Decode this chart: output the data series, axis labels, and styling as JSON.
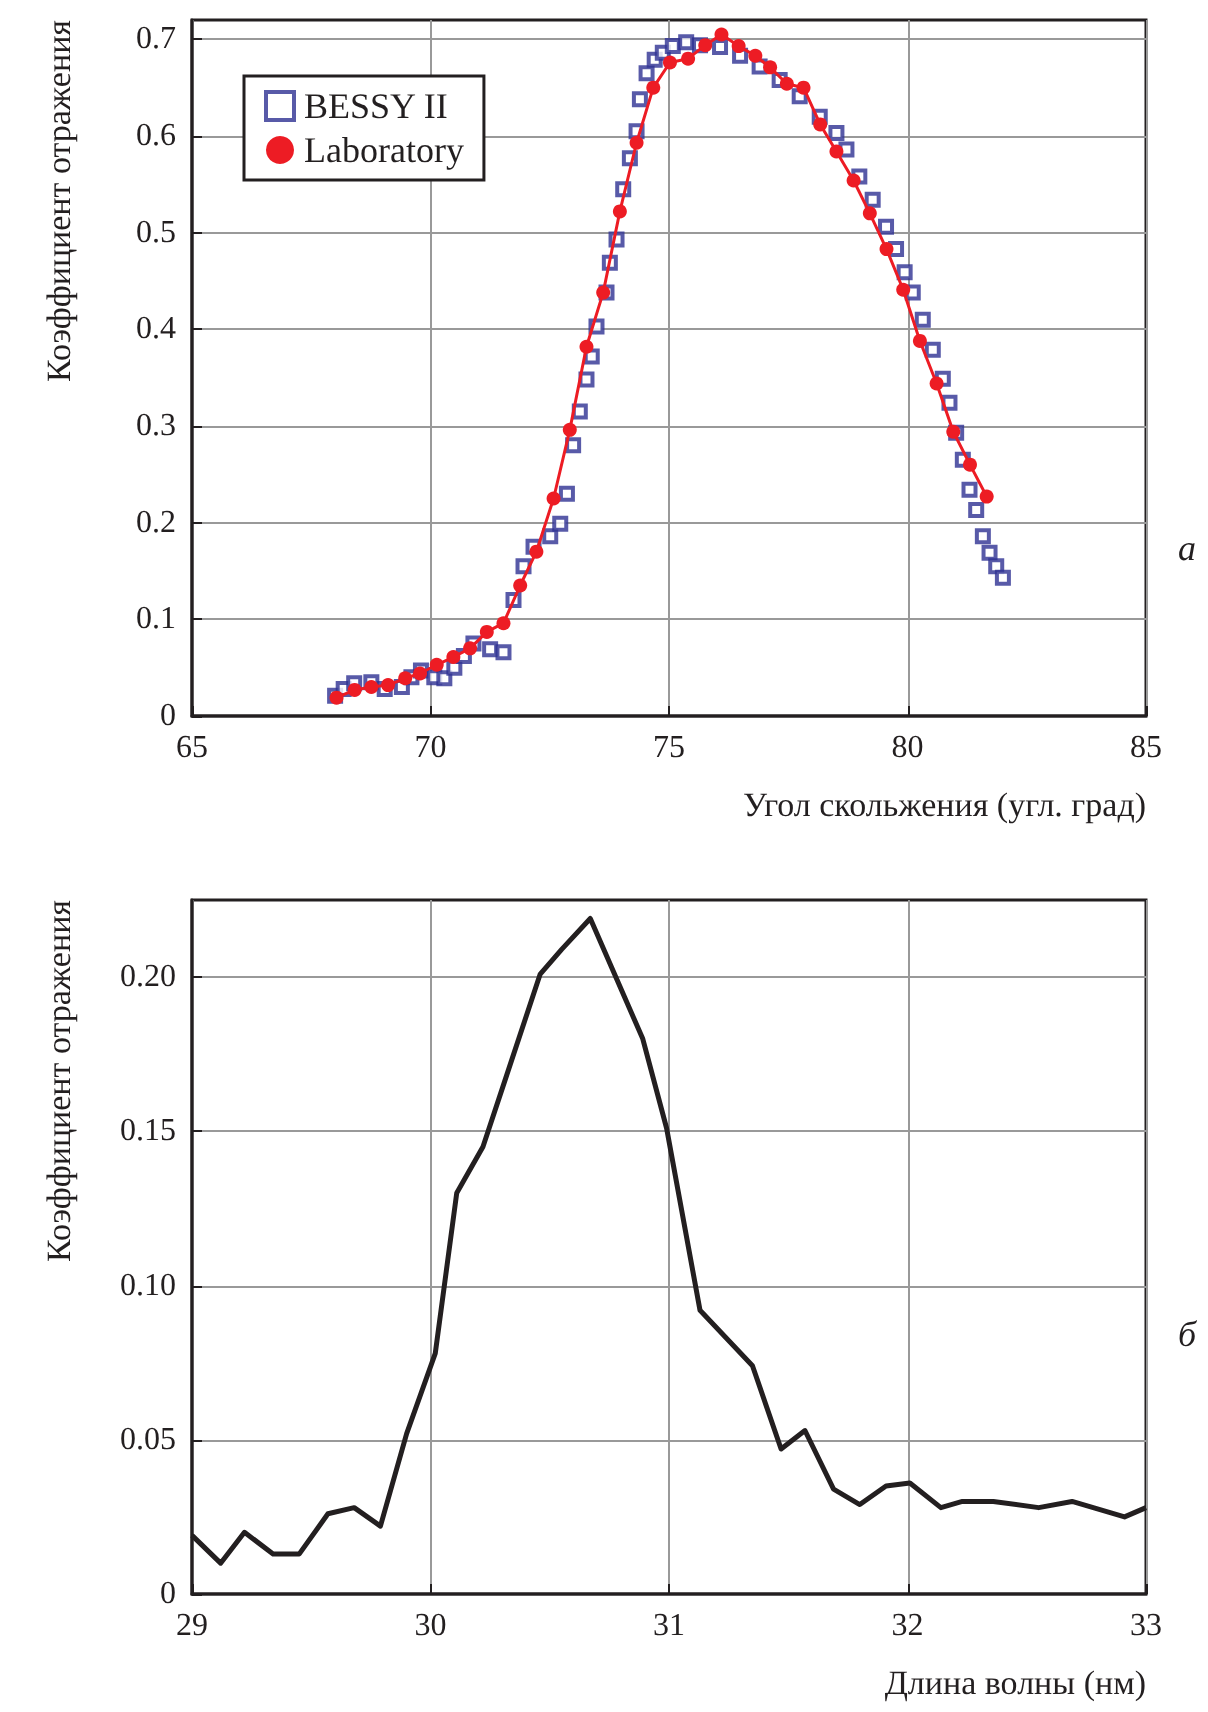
{
  "chart_data": [
    {
      "type": "scatter",
      "xlabel": "Угол скольжения (угл. град)",
      "ylabel": "Коэффициент отражения",
      "annotations": [
        "а"
      ],
      "xlim": [
        65,
        85
      ],
      "xticks": [
        65,
        70,
        75,
        80,
        85
      ],
      "ylim": [
        0,
        0.72
      ],
      "yticks": [
        0,
        0.1,
        0.2,
        0.3,
        0.4,
        0.5,
        0.6,
        0.7
      ],
      "grid": true,
      "legend": "top left",
      "series": [
        {
          "name": "BESSY II",
          "marker": "square",
          "color": "#2e3192",
          "x": [
            68.0,
            68.18,
            68.4,
            68.76,
            69.04,
            69.4,
            69.6,
            69.8,
            70.08,
            70.29,
            70.5,
            70.7,
            70.9,
            71.25,
            71.53,
            71.74,
            71.95,
            72.16,
            72.51,
            72.72,
            72.86,
            72.99,
            73.13,
            73.27,
            73.38,
            73.48,
            73.69,
            73.76,
            73.9,
            74.04,
            74.18,
            74.32,
            74.39,
            74.53,
            74.7,
            74.87,
            75.08,
            75.36,
            75.65,
            76.07,
            76.49,
            76.9,
            77.32,
            77.74,
            78.16,
            78.51,
            78.72,
            78.99,
            79.27,
            79.55,
            79.76,
            79.94,
            80.11,
            80.32,
            80.53,
            80.74,
            80.88,
            81.02,
            81.16,
            81.3,
            81.44,
            81.58,
            81.72,
            81.86,
            82.0
          ],
          "values": [
            0.021,
            0.028,
            0.034,
            0.035,
            0.028,
            0.03,
            0.04,
            0.047,
            0.04,
            0.039,
            0.05,
            0.062,
            0.075,
            0.069,
            0.066,
            0.12,
            0.155,
            0.175,
            0.186,
            0.199,
            0.23,
            0.28,
            0.315,
            0.348,
            0.372,
            0.403,
            0.438,
            0.469,
            0.493,
            0.545,
            0.577,
            0.605,
            0.638,
            0.665,
            0.679,
            0.686,
            0.693,
            0.697,
            0.694,
            0.692,
            0.683,
            0.672,
            0.658,
            0.641,
            0.62,
            0.603,
            0.586,
            0.558,
            0.534,
            0.506,
            0.483,
            0.459,
            0.438,
            0.41,
            0.379,
            0.349,
            0.324,
            0.293,
            0.265,
            0.234,
            0.213,
            0.186,
            0.169,
            0.155,
            0.143
          ]
        },
        {
          "name": "Laboratory",
          "type": "line",
          "marker": "circle",
          "line_style": "solid",
          "color": "#ed1c24",
          "x": [
            68.03,
            68.41,
            68.76,
            69.11,
            69.47,
            69.78,
            70.13,
            70.48,
            70.83,
            71.18,
            71.53,
            71.88,
            72.22,
            72.58,
            72.92,
            73.27,
            73.62,
            73.97,
            74.32,
            74.67,
            75.02,
            75.4,
            75.76,
            76.1,
            76.46,
            76.81,
            77.12,
            77.47,
            77.82,
            78.17,
            78.51,
            78.87,
            79.21,
            79.56,
            79.91,
            80.26,
            80.61,
            80.96,
            81.31,
            81.66
          ],
          "values": [
            0.019,
            0.027,
            0.03,
            0.032,
            0.039,
            0.044,
            0.053,
            0.061,
            0.07,
            0.087,
            0.096,
            0.135,
            0.17,
            0.225,
            0.296,
            0.382,
            0.438,
            0.522,
            0.593,
            0.65,
            0.676,
            0.68,
            0.694,
            0.705,
            0.693,
            0.683,
            0.671,
            0.654,
            0.65,
            0.612,
            0.584,
            0.554,
            0.52,
            0.483,
            0.441,
            0.388,
            0.344,
            0.294,
            0.26,
            0.227
          ]
        }
      ]
    },
    {
      "type": "line",
      "xlabel": "Длина волны (нм)",
      "ylabel": "Коэффициент отражения",
      "annotations": [
        "б"
      ],
      "xlim": [
        29,
        33
      ],
      "xticks": [
        29,
        30,
        31,
        32,
        33
      ],
      "ylim": [
        0,
        0.225
      ],
      "yticks": [
        0,
        {
          "value": 0.05,
          "label": "0.05"
        },
        {
          "value": 0.1,
          "label": "0.10"
        },
        {
          "value": 0.15,
          "label": "0.15"
        },
        {
          "value": 0.2,
          "label": "0.20"
        }
      ],
      "grid": true,
      "marker": "none",
      "line_style": "solid",
      "series": [
        {
          "color": "#231f20",
          "x": [
            29.0,
            29.12,
            29.22,
            29.34,
            29.45,
            29.57,
            29.68,
            29.79,
            29.9,
            30.02,
            30.11,
            30.22,
            30.34,
            30.46,
            30.55,
            30.67,
            30.89,
            30.99,
            31.13,
            31.35,
            31.47,
            31.57,
            31.69,
            31.8,
            31.91,
            32.01,
            32.14,
            32.23,
            32.36,
            32.55,
            32.69,
            32.91,
            33.0
          ],
          "values": [
            0.019,
            0.01,
            0.02,
            0.013,
            0.013,
            0.026,
            0.028,
            0.022,
            0.052,
            0.078,
            0.13,
            0.145,
            0.173,
            0.201,
            0.209,
            0.219,
            0.18,
            0.151,
            0.092,
            0.074,
            0.047,
            0.053,
            0.034,
            0.029,
            0.035,
            0.036,
            0.028,
            0.03,
            0.03,
            0.028,
            0.03,
            0.025,
            0.028
          ]
        }
      ]
    }
  ]
}
